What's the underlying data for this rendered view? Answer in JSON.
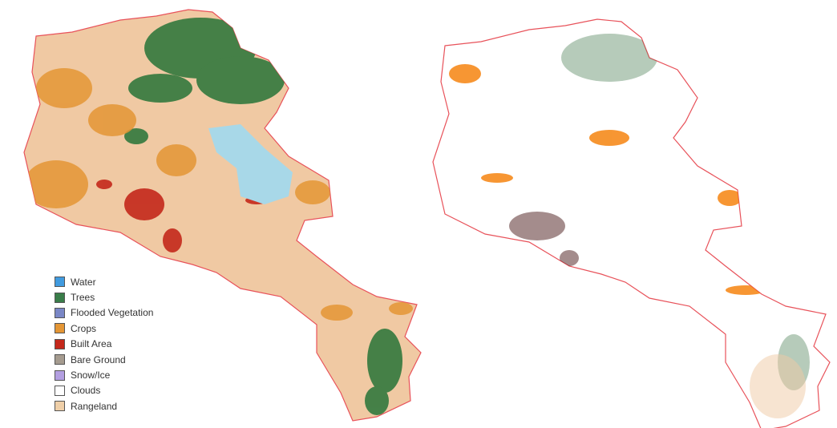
{
  "legend": {
    "items": [
      {
        "label": "Water",
        "color": "#419bdf"
      },
      {
        "label": "Trees",
        "color": "#397d49"
      },
      {
        "label": "Flooded Vegetation",
        "color": "#7a87c6"
      },
      {
        "label": "Crops",
        "color": "#e49635"
      },
      {
        "label": "Built Area",
        "color": "#c4281b"
      },
      {
        "label": "Bare Ground",
        "color": "#a59b8f"
      },
      {
        "label": "Snow/Ice",
        "color": "#a8ebff"
      },
      {
        "label": "Clouds",
        "color": "#ffffff"
      },
      {
        "label": "Rangeland",
        "color": "#e3c6a1"
      }
    ]
  },
  "maps": {
    "left": {
      "view": "land-cover-classification"
    },
    "right": {
      "view": "land-cover-change"
    }
  },
  "colors": {
    "outline": "#e8525a",
    "lake": "#a8d8e8",
    "change_orange": "#f57c00",
    "change_green": "#2e6b3a",
    "change_dark": "#4a1a1a"
  }
}
